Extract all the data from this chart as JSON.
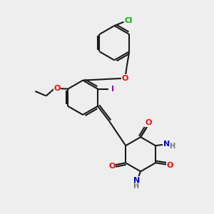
{
  "bg_color": "#eeeeee",
  "bond_color": "#1a1a1a",
  "bond_width": 1.5,
  "atom_colors": {
    "O": "#ff0000",
    "N": "#0000bb",
    "Cl": "#00aa00",
    "I": "#9900aa",
    "H": "#777777",
    "C": "#1a1a1a"
  },
  "figsize": [
    3.0,
    3.0
  ],
  "dpi": 100
}
